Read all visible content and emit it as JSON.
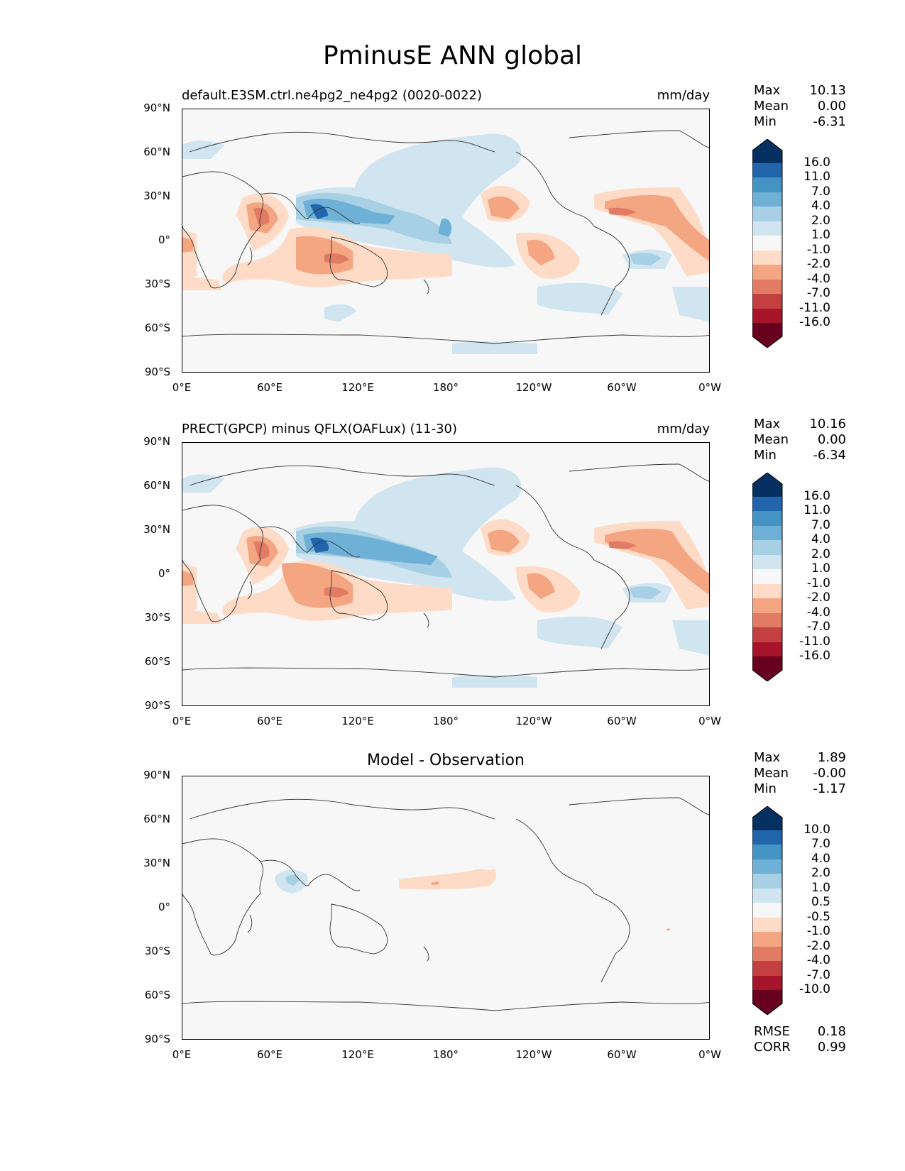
{
  "title": "PminusE ANN global",
  "colors": {
    "ocean_bg": "#f7f7f7",
    "blues": [
      "#053061",
      "#2166ac",
      "#4393c3",
      "#6eb0d6",
      "#a7d0e4",
      "#d1e5f0"
    ],
    "whites": [
      "#f7f7f7"
    ],
    "reds": [
      "#fddbc7",
      "#f4a582",
      "#e27b64",
      "#c43f40",
      "#a51428",
      "#67001f"
    ]
  },
  "xticks": [
    "0°E",
    "60°E",
    "120°E",
    "180°",
    "120°W",
    "60°W",
    "0°W"
  ],
  "yticks": [
    "90°N",
    "60°N",
    "30°N",
    "0°",
    "30°S",
    "60°S",
    "90°S"
  ],
  "panels": [
    {
      "left_title": "default.E3SM.ctrl.ne4pg2_ne4pg2 (0020-0022)",
      "right_title": "mm/day",
      "stats": [
        {
          "label": "Max",
          "value": "10.13"
        },
        {
          "label": "Mean",
          "value": "0.00"
        },
        {
          "label": "Min",
          "value": "-6.31"
        }
      ],
      "levels": [
        "16.0",
        "11.0",
        "7.0",
        "4.0",
        "2.0",
        "1.0",
        "-1.0",
        "-2.0",
        "-4.0",
        "-7.0",
        "-11.0",
        "-16.0"
      ]
    },
    {
      "left_title": "PRECT(GPCP) minus QFLX(OAFLux) (11-30)",
      "right_title": "mm/day",
      "stats": [
        {
          "label": "Max",
          "value": "10.16"
        },
        {
          "label": "Mean",
          "value": "0.00"
        },
        {
          "label": "Min",
          "value": "-6.34"
        }
      ],
      "levels": [
        "16.0",
        "11.0",
        "7.0",
        "4.0",
        "2.0",
        "1.0",
        "-1.0",
        "-2.0",
        "-4.0",
        "-7.0",
        "-11.0",
        "-16.0"
      ]
    },
    {
      "center_title": "Model - Observation",
      "stats": [
        {
          "label": "Max",
          "value": "1.89"
        },
        {
          "label": "Mean",
          "value": "-0.00"
        },
        {
          "label": "Min",
          "value": "-1.17"
        }
      ],
      "levels": [
        "10.0",
        "7.0",
        "4.0",
        "2.0",
        "1.0",
        "0.5",
        "-0.5",
        "-1.0",
        "-2.0",
        "-4.0",
        "-7.0",
        "-10.0"
      ],
      "metrics": [
        {
          "label": "RMSE",
          "value": "0.18"
        },
        {
          "label": "CORR",
          "value": "0.99"
        }
      ]
    }
  ]
}
